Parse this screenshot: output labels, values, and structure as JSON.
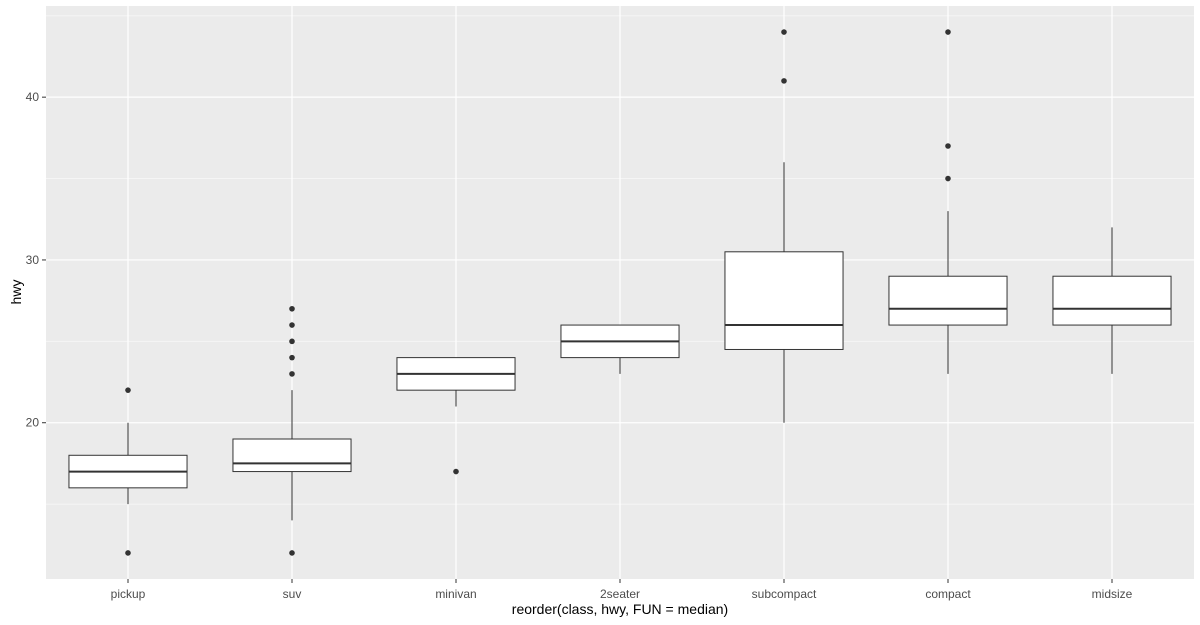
{
  "chart_data": {
    "type": "boxplot",
    "title": "",
    "xlabel": "reorder(class, hwy, FUN = median)",
    "ylabel": "hwy",
    "ylim": [
      10.4,
      45.6
    ],
    "y_ticks": [
      20,
      30,
      40
    ],
    "grid": true,
    "colors": {
      "panel_background": "#ebebeb",
      "grid_major": "#ffffff",
      "grid_minor": "#f5f5f5",
      "box_fill": "#ffffff",
      "box_stroke": "#333333",
      "outlier": "#333333"
    },
    "categories": [
      "pickup",
      "suv",
      "minivan",
      "2seater",
      "subcompact",
      "compact",
      "midsize"
    ],
    "boxes": [
      {
        "category": "pickup",
        "whisker_low": 15,
        "q1": 16,
        "median": 17,
        "q3": 18,
        "whisker_high": 20,
        "outliers": [
          12,
          22
        ]
      },
      {
        "category": "suv",
        "whisker_low": 14,
        "q1": 17,
        "median": 17.5,
        "q3": 19,
        "whisker_high": 22,
        "outliers": [
          12,
          23,
          24,
          25,
          26,
          27
        ]
      },
      {
        "category": "minivan",
        "whisker_low": 21,
        "q1": 22,
        "median": 23,
        "q3": 24,
        "whisker_high": 24,
        "outliers": [
          17
        ]
      },
      {
        "category": "2seater",
        "whisker_low": 23,
        "q1": 24,
        "median": 25,
        "q3": 26,
        "whisker_high": 26,
        "outliers": []
      },
      {
        "category": "subcompact",
        "whisker_low": 20,
        "q1": 24.5,
        "median": 26,
        "q3": 30.5,
        "whisker_high": 36,
        "outliers": [
          41,
          44
        ]
      },
      {
        "category": "compact",
        "whisker_low": 23,
        "q1": 26,
        "median": 27,
        "q3": 29,
        "whisker_high": 33,
        "outliers": [
          35,
          37,
          44
        ]
      },
      {
        "category": "midsize",
        "whisker_low": 23,
        "q1": 26,
        "median": 27,
        "q3": 29,
        "whisker_high": 32,
        "outliers": []
      }
    ]
  }
}
